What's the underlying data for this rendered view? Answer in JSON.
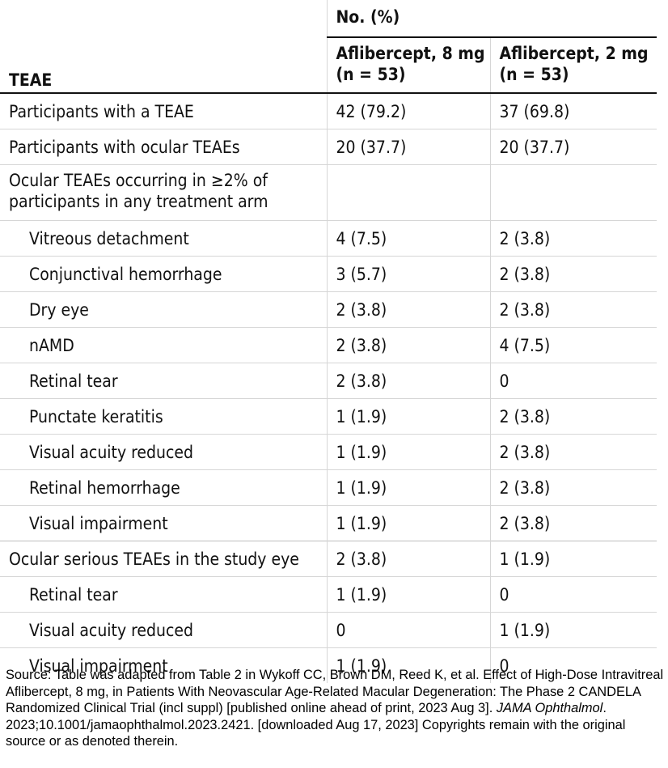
{
  "table": {
    "header": {
      "group_label": "No. (%)",
      "col1": "TEAE",
      "col2_line1": "Aflibercept, 8 mg",
      "col2_line2": "(n = 53)",
      "col3_line1": "Aflibercept, 2 mg",
      "col3_line2": "(n = 53)"
    },
    "rows": [
      {
        "label": "Participants with a TEAE",
        "v8": "42 (79.2)",
        "v2": "37 (69.8)",
        "indent": false
      },
      {
        "label": "Participants with ocular TEAEs",
        "v8": "20 (37.7)",
        "v2": "20 (37.7)",
        "indent": false
      },
      {
        "label": "Ocular TEAEs occurring in ≥2% of participants in any treatment arm",
        "v8": "",
        "v2": "",
        "indent": false
      },
      {
        "label": "Vitreous detachment",
        "v8": "4 (7.5)",
        "v2": "2 (3.8)",
        "indent": true
      },
      {
        "label": "Conjunctival hemorrhage",
        "v8": "3 (5.7)",
        "v2": "2 (3.8)",
        "indent": true
      },
      {
        "label": "Dry eye",
        "v8": "2 (3.8)",
        "v2": "2 (3.8)",
        "indent": true
      },
      {
        "label": "nAMD",
        "v8": "2 (3.8)",
        "v2": "4 (7.5)",
        "indent": true
      },
      {
        "label": "Retinal tear",
        "v8": "2 (3.8)",
        "v2": "0",
        "indent": true
      },
      {
        "label": "Punctate keratitis",
        "v8": "1 (1.9)",
        "v2": "2 (3.8)",
        "indent": true
      },
      {
        "label": "Visual acuity reduced",
        "v8": "1 (1.9)",
        "v2": "2 (3.8)",
        "indent": true
      },
      {
        "label": "Retinal hemorrhage",
        "v8": "1 (1.9)",
        "v2": "2 (3.8)",
        "indent": true
      },
      {
        "label": "Visual impairment",
        "v8": "1 (1.9)",
        "v2": "2 (3.8)",
        "indent": true
      },
      {
        "label": "Ocular serious TEAEs in the study eye",
        "v8": "2 (3.8)",
        "v2": "1 (1.9)",
        "indent": false
      },
      {
        "label": "Retinal tear",
        "v8": "1 (1.9)",
        "v2": "0",
        "indent": true
      },
      {
        "label": "Visual acuity reduced",
        "v8": "0",
        "v2": "1 (1.9)",
        "indent": true
      },
      {
        "label": "Visual impairment",
        "v8": "1 (1.9)",
        "v2": "0",
        "indent": true
      }
    ]
  },
  "source": {
    "text_before": "Source: Table was adapted from Table 2 in Wykoff CC, Brown DM, Reed K, et al. Effect of High-Dose Intravitreal Aflibercept, 8 mg, in Patients With Neovascular Age-Related Macular Degeneration: The Phase 2 CANDELA Randomized Clinical Trial (incl suppl) [published online ahead of print, 2023 Aug 3]. ",
    "journal": "JAMA Ophthalmol",
    "text_after": ". 2023;10.1001/jamaophthalmol.2023.2421. [downloaded Aug 17, 2023] Copyrights remain with the original source or as denoted therein."
  }
}
